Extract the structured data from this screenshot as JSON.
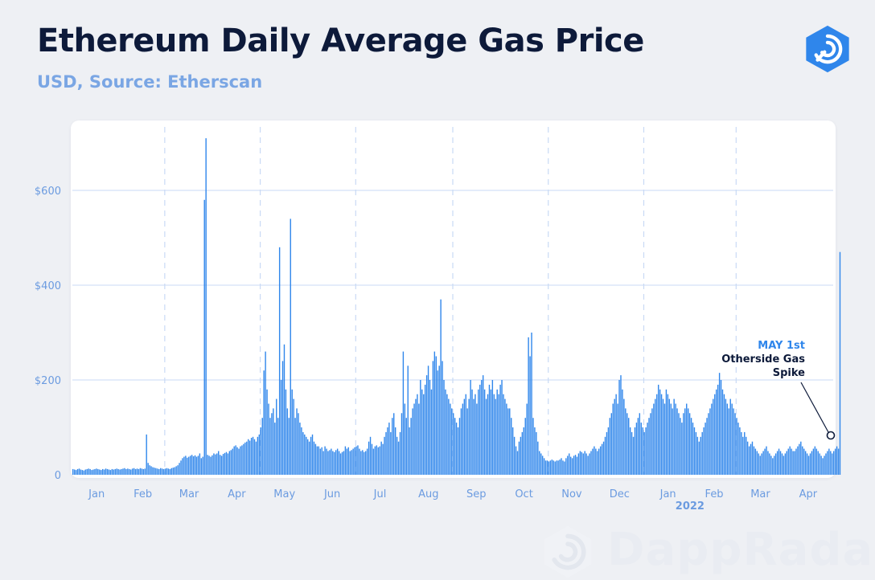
{
  "header": {
    "title": "Ethereum Daily Average Gas Price",
    "subtitle": "USD, Source: Etherscan",
    "logo_icon": "dappradar-logo-icon",
    "watermark": "DappRadar"
  },
  "colors": {
    "bar": "#2f86eb",
    "title": "#0d1a3a",
    "subtitle": "#7aa6e4",
    "axis_label": "#6b9be0",
    "grid": "#c9daf5",
    "annotation_accent": "#2f86eb",
    "annotation_text": "#0d1a3a"
  },
  "chart_data": {
    "type": "bar",
    "title": "Ethereum Daily Average Gas Price",
    "subtitle": "USD, Source: Etherscan",
    "xlabel": "",
    "ylabel": "",
    "ylim": [
      0,
      740
    ],
    "yticks": [
      0,
      200,
      400,
      600
    ],
    "ytick_labels": [
      "0",
      "$200",
      "$400",
      "$600"
    ],
    "grid": true,
    "x_range": [
      "2021-01-01",
      "2022-05-01"
    ],
    "month_labels": [
      "Jan",
      "Feb",
      "Mar",
      "Apr",
      "May",
      "Jun",
      "Jul",
      "Aug",
      "Sep",
      "Oct",
      "Nov",
      "Dec",
      "Jan",
      "Feb",
      "Mar",
      "Apr"
    ],
    "year_label": "2022",
    "series": [
      {
        "values": [
          12,
          11,
          10,
          12,
          13,
          11,
          10,
          9,
          11,
          12,
          13,
          12,
          10,
          11,
          12,
          13,
          12,
          11,
          10,
          12,
          11,
          13,
          12,
          11,
          10,
          12,
          11,
          12,
          13,
          12,
          11,
          12,
          13,
          14,
          12,
          13,
          12,
          11,
          13,
          14,
          12,
          13,
          12,
          14,
          13,
          12,
          13,
          85,
          25,
          20,
          18,
          16,
          15,
          14,
          13,
          12,
          14,
          13,
          12,
          13,
          14,
          13,
          12,
          14,
          15,
          16,
          18,
          20,
          25,
          30,
          35,
          38,
          40,
          36,
          38,
          40,
          42,
          39,
          41,
          38,
          40,
          45,
          35,
          38,
          580,
          710,
          42,
          40,
          38,
          41,
          45,
          43,
          45,
          50,
          42,
          40,
          44,
          46,
          48,
          45,
          50,
          52,
          55,
          60,
          62,
          58,
          55,
          60,
          62,
          65,
          68,
          70,
          75,
          72,
          78,
          80,
          75,
          70,
          80,
          85,
          100,
          120,
          220,
          260,
          180,
          150,
          120,
          130,
          140,
          110,
          160,
          120,
          480,
          200,
          240,
          275,
          180,
          140,
          120,
          540,
          180,
          160,
          120,
          140,
          130,
          110,
          100,
          90,
          85,
          80,
          75,
          70,
          80,
          85,
          70,
          65,
          60,
          60,
          55,
          58,
          50,
          60,
          55,
          50,
          52,
          55,
          50,
          48,
          52,
          55,
          50,
          45,
          48,
          50,
          60,
          55,
          58,
          50,
          52,
          55,
          58,
          60,
          62,
          55,
          50,
          52,
          48,
          50,
          55,
          70,
          80,
          65,
          55,
          60,
          62,
          58,
          60,
          70,
          65,
          80,
          90,
          100,
          110,
          90,
          120,
          130,
          100,
          80,
          70,
          90,
          130,
          260,
          150,
          120,
          230,
          100,
          120,
          140,
          150,
          160,
          170,
          150,
          200,
          180,
          170,
          190,
          210,
          230,
          200,
          180,
          240,
          260,
          250,
          220,
          230,
          370,
          240,
          200,
          180,
          170,
          160,
          150,
          140,
          130,
          120,
          110,
          100,
          120,
          140,
          150,
          160,
          170,
          140,
          160,
          200,
          180,
          160,
          170,
          150,
          180,
          190,
          200,
          210,
          180,
          160,
          170,
          190,
          180,
          200,
          170,
          160,
          180,
          170,
          190,
          200,
          170,
          160,
          150,
          140,
          140,
          120,
          100,
          80,
          60,
          50,
          70,
          80,
          90,
          100,
          120,
          150,
          290,
          250,
          300,
          120,
          100,
          90,
          70,
          50,
          45,
          40,
          35,
          30,
          30,
          28,
          30,
          32,
          30,
          28,
          30,
          30,
          32,
          35,
          30,
          28,
          35,
          40,
          45,
          38,
          35,
          40,
          42,
          38,
          45,
          50,
          48,
          45,
          50,
          45,
          40,
          45,
          50,
          55,
          60,
          55,
          50,
          55,
          60,
          65,
          70,
          80,
          90,
          100,
          120,
          130,
          150,
          160,
          170,
          150,
          200,
          210,
          180,
          160,
          140,
          130,
          120,
          100,
          90,
          80,
          100,
          110,
          120,
          130,
          110,
          100,
          90,
          100,
          110,
          120,
          130,
          140,
          150,
          160,
          170,
          190,
          180,
          170,
          160,
          150,
          180,
          170,
          160,
          150,
          140,
          160,
          150,
          140,
          130,
          120,
          110,
          130,
          140,
          150,
          140,
          130,
          120,
          110,
          100,
          90,
          80,
          70,
          80,
          90,
          100,
          110,
          120,
          130,
          140,
          150,
          160,
          170,
          180,
          190,
          215,
          200,
          180,
          170,
          160,
          150,
          140,
          160,
          150,
          140,
          130,
          120,
          110,
          100,
          90,
          80,
          90,
          80,
          70,
          60,
          65,
          70,
          60,
          55,
          50,
          45,
          40,
          45,
          50,
          55,
          60,
          50,
          45,
          40,
          35,
          40,
          45,
          50,
          55,
          50,
          45,
          40,
          45,
          50,
          55,
          60,
          55,
          50,
          50,
          55,
          60,
          65,
          70,
          60,
          55,
          50,
          45,
          40,
          45,
          50,
          55,
          60,
          55,
          50,
          45,
          40,
          35,
          40,
          45,
          50,
          55,
          50,
          45,
          50,
          55,
          60,
          55,
          470
        ]
      }
    ],
    "annotation": {
      "date_label": "MAY 1st",
      "line1": "Otherside Gas",
      "line2": "Spike"
    }
  }
}
